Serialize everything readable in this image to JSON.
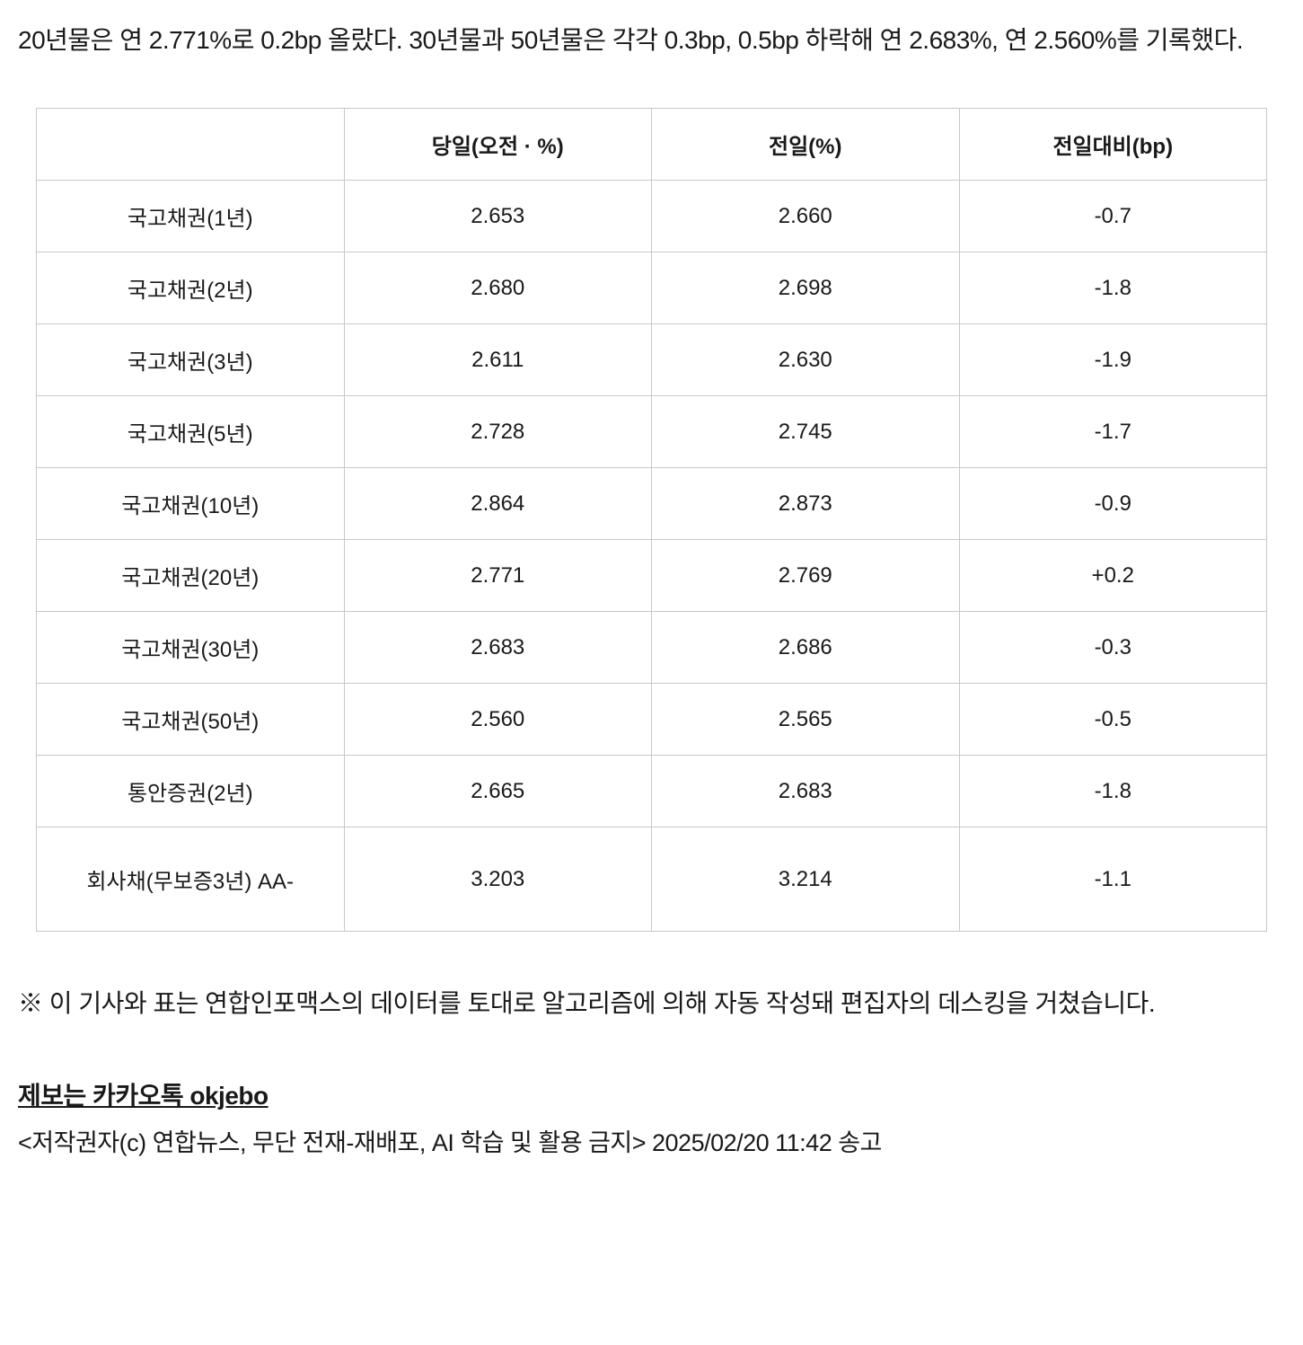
{
  "article": {
    "lead_text": "20년물은 연 2.771%로 0.2bp 올랐다. 30년물과 50년물은 각각 0.3bp, 0.5bp 하락해 연 2.683%, 연 2.560%를 기록했다."
  },
  "table": {
    "type": "table",
    "columns": [
      "",
      "당일(오전 · %)",
      "전일(%)",
      "전일대비(bp)"
    ],
    "column_widths_pct": [
      25,
      25,
      25,
      25
    ],
    "rows": [
      [
        "국고채권(1년)",
        "2.653",
        "2.660",
        "-0.7"
      ],
      [
        "국고채권(2년)",
        "2.680",
        "2.698",
        "-1.8"
      ],
      [
        "국고채권(3년)",
        "2.611",
        "2.630",
        "-1.9"
      ],
      [
        "국고채권(5년)",
        "2.728",
        "2.745",
        "-1.7"
      ],
      [
        "국고채권(10년)",
        "2.864",
        "2.873",
        "-0.9"
      ],
      [
        "국고채권(20년)",
        "2.771",
        "2.769",
        "+0.2"
      ],
      [
        "국고채권(30년)",
        "2.683",
        "2.686",
        "-0.3"
      ],
      [
        "국고채권(50년)",
        "2.560",
        "2.565",
        "-0.5"
      ],
      [
        "통안증권(2년)",
        "2.665",
        "2.683",
        "-1.8"
      ],
      [
        "회사채(무보증3년) AA-",
        "3.203",
        "3.214",
        "-1.1"
      ]
    ],
    "border_color": "#c8c8c8",
    "text_color": "#191919",
    "background_color": "#ffffff",
    "cell_fontsize": 24,
    "header_fontweight": 700
  },
  "disclaimer": "※ 이 기사와 표는 연합인포맥스의 데이터를 토대로 알고리즘에 의해 자동 작성돼 편집자의 데스킹을 거쳤습니다.",
  "footer": {
    "tip_line": "제보는 카카오톡 okjebo",
    "copyright": "<저작권자(c) 연합뉴스, 무단 전재-재배포, AI 학습 및 활용 금지>  2025/02/20 11:42 송고"
  },
  "style": {
    "body_text_fontsize": 28,
    "body_text_color": "#191919",
    "background_color": "#ffffff"
  }
}
